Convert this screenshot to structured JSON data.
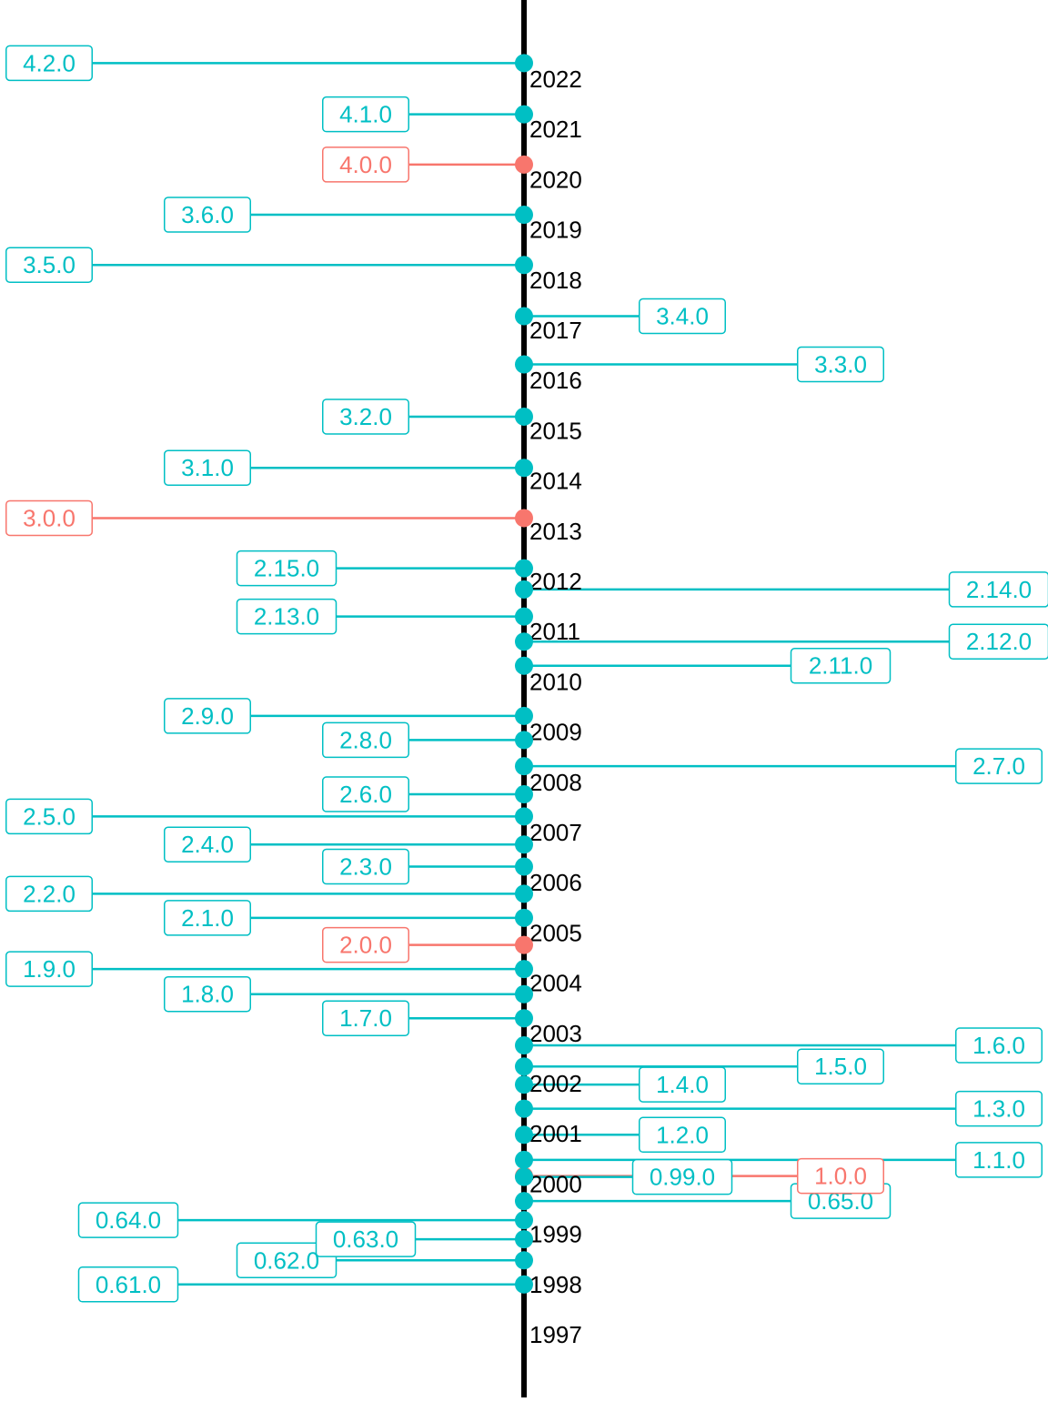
{
  "chart_data": {
    "type": "timeline",
    "title": "",
    "xlabel": "",
    "ylabel": "",
    "ylim": [
      1997,
      2023
    ],
    "grid": false,
    "legend": "none",
    "colors": {
      "major": "#F8766D",
      "minor": "#00BFC4",
      "axis": "#000000"
    },
    "year_ticks": [
      "1997",
      "1998",
      "1999",
      "2000",
      "2001",
      "2002",
      "2003",
      "2004",
      "2005",
      "2006",
      "2007",
      "2008",
      "2009",
      "2010",
      "2011",
      "2012",
      "2013",
      "2014",
      "2015",
      "2016",
      "2017",
      "2018",
      "2019",
      "2020",
      "2021",
      "2022"
    ],
    "releases": [
      {
        "label": "0.61.0",
        "date": 1998.0,
        "offset": -1.0,
        "major": false
      },
      {
        "label": "0.62.0",
        "date": 1998.48,
        "offset": -0.6,
        "major": false
      },
      {
        "label": "0.63.0",
        "date": 1998.9,
        "offset": -0.4,
        "major": false
      },
      {
        "label": "0.64.0",
        "date": 1999.28,
        "offset": -1.0,
        "major": false
      },
      {
        "label": "0.65.0",
        "date": 1999.66,
        "offset": 0.8,
        "major": false
      },
      {
        "label": "1.0.0",
        "date": 2000.16,
        "offset": 0.8,
        "major": true
      },
      {
        "label": "0.99.0",
        "date": 2000.14,
        "offset": 0.4,
        "major": false
      },
      {
        "label": "1.1.0",
        "date": 2000.48,
        "offset": 1.2,
        "major": false
      },
      {
        "label": "1.2.0",
        "date": 2000.98,
        "offset": 0.4,
        "major": false
      },
      {
        "label": "1.3.0",
        "date": 2001.5,
        "offset": 1.2,
        "major": false
      },
      {
        "label": "1.4.0",
        "date": 2001.98,
        "offset": 0.4,
        "major": false
      },
      {
        "label": "1.5.0",
        "date": 2002.34,
        "offset": 0.8,
        "major": false
      },
      {
        "label": "1.6.0",
        "date": 2002.76,
        "offset": 1.2,
        "major": false
      },
      {
        "label": "1.7.0",
        "date": 2003.3,
        "offset": -0.4,
        "major": false
      },
      {
        "label": "1.8.0",
        "date": 2003.78,
        "offset": -0.8,
        "major": false
      },
      {
        "label": "1.9.0",
        "date": 2004.28,
        "offset": -1.2,
        "major": false
      },
      {
        "label": "2.0.0",
        "date": 2004.76,
        "offset": -0.4,
        "major": true
      },
      {
        "label": "2.1.0",
        "date": 2005.3,
        "offset": -0.8,
        "major": false
      },
      {
        "label": "2.2.0",
        "date": 2005.78,
        "offset": -1.2,
        "major": false
      },
      {
        "label": "2.3.0",
        "date": 2006.32,
        "offset": -0.4,
        "major": false
      },
      {
        "label": "2.4.0",
        "date": 2006.76,
        "offset": -0.8,
        "major": false
      },
      {
        "label": "2.5.0",
        "date": 2007.32,
        "offset": -1.2,
        "major": false
      },
      {
        "label": "2.6.0",
        "date": 2007.76,
        "offset": -0.4,
        "major": false
      },
      {
        "label": "2.7.0",
        "date": 2008.32,
        "offset": 1.2,
        "major": false
      },
      {
        "label": "2.8.0",
        "date": 2008.84,
        "offset": -0.4,
        "major": false
      },
      {
        "label": "2.9.0",
        "date": 2009.32,
        "offset": -0.8,
        "major": false
      },
      {
        "label": "2.11.0",
        "date": 2010.32,
        "offset": 0.8,
        "major": false
      },
      {
        "label": "2.12.0",
        "date": 2010.8,
        "offset": 1.2,
        "major": false
      },
      {
        "label": "2.13.0",
        "date": 2011.3,
        "offset": -0.6,
        "major": false
      },
      {
        "label": "2.14.0",
        "date": 2011.84,
        "offset": 1.2,
        "major": false
      },
      {
        "label": "2.15.0",
        "date": 2012.26,
        "offset": -0.6,
        "major": false
      },
      {
        "label": "3.0.0",
        "date": 2013.26,
        "offset": -1.2,
        "major": true
      },
      {
        "label": "3.1.0",
        "date": 2014.26,
        "offset": -0.8,
        "major": false
      },
      {
        "label": "3.2.0",
        "date": 2015.28,
        "offset": -0.4,
        "major": false
      },
      {
        "label": "3.3.0",
        "date": 2016.32,
        "offset": 0.8,
        "major": false
      },
      {
        "label": "3.4.0",
        "date": 2017.28,
        "offset": 0.4,
        "major": false
      },
      {
        "label": "3.5.0",
        "date": 2018.3,
        "offset": -1.2,
        "major": false
      },
      {
        "label": "3.6.0",
        "date": 2019.3,
        "offset": -0.8,
        "major": false
      },
      {
        "label": "4.0.0",
        "date": 2020.3,
        "offset": -0.4,
        "major": true
      },
      {
        "label": "4.1.0",
        "date": 2021.3,
        "offset": -0.4,
        "major": false
      },
      {
        "label": "4.2.0",
        "date": 2022.32,
        "offset": -1.2,
        "major": false
      }
    ]
  }
}
